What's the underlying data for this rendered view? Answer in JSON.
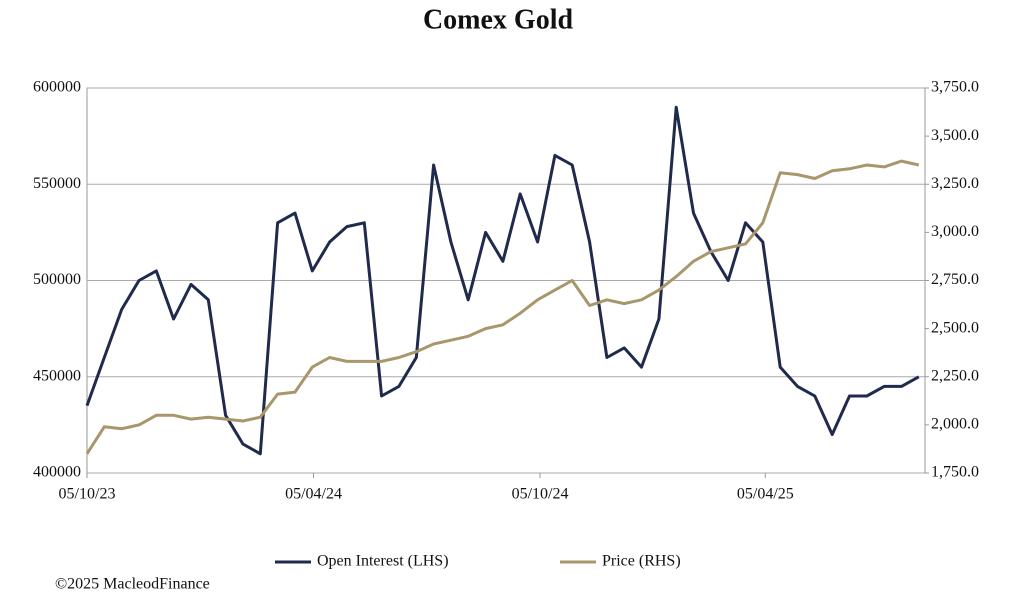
{
  "chart_data": {
    "type": "line",
    "title": "Comex Gold",
    "x": [
      "05/10/23",
      "19/10/23",
      "02/11/23",
      "16/11/23",
      "30/11/23",
      "14/12/23",
      "28/12/23",
      "11/01/24",
      "25/01/24",
      "08/02/24",
      "22/02/24",
      "07/03/24",
      "21/03/24",
      "04/04/24",
      "18/04/24",
      "02/05/24",
      "16/05/24",
      "30/05/24",
      "13/06/24",
      "27/06/24",
      "11/07/24",
      "25/07/24",
      "08/08/24",
      "22/08/24",
      "05/09/24",
      "19/09/24",
      "03/10/24",
      "17/10/24",
      "31/10/24",
      "14/11/24",
      "28/11/24",
      "12/12/24",
      "26/12/24",
      "09/01/25",
      "23/01/25",
      "06/02/25",
      "20/02/25",
      "06/03/25",
      "20/03/25",
      "03/04/25",
      "17/04/25",
      "01/05/25",
      "15/05/25",
      "29/05/25",
      "12/06/25",
      "26/06/25",
      "10/07/25",
      "24/07/25",
      "07/08/25"
    ],
    "xlim": [
      "05/10/23",
      "12/08/25"
    ],
    "xticks": [
      "05/10/23",
      "05/04/24",
      "05/10/24",
      "05/04/25"
    ],
    "ylim": [
      400000,
      600000
    ],
    "yticks": [
      400000,
      450000,
      500000,
      550000,
      600000
    ],
    "y2lim": [
      1750,
      3750
    ],
    "y2ticks": [
      {
        "value": 1750,
        "label": "1,750.0"
      },
      {
        "value": 2000,
        "label": "2,000.0"
      },
      {
        "value": 2250,
        "label": "2,250.0"
      },
      {
        "value": 2500,
        "label": "2,500.0"
      },
      {
        "value": 2750,
        "label": "2,750.0"
      },
      {
        "value": 3000,
        "label": "3,000.0"
      },
      {
        "value": 3250,
        "label": "3,250.0"
      },
      {
        "value": 3500,
        "label": "3,500.0"
      },
      {
        "value": 3750,
        "label": "3,750.0"
      }
    ],
    "grid": true,
    "series": [
      {
        "name": "Open Interest (LHS)",
        "color": "#1f2a4d",
        "values": [
          435000,
          460000,
          485000,
          500000,
          505000,
          480000,
          498000,
          490000,
          430000,
          415000,
          410000,
          530000,
          535000,
          505000,
          520000,
          528000,
          530000,
          440000,
          445000,
          460000,
          560000,
          520000,
          490000,
          525000,
          510000,
          545000,
          520000,
          565000,
          560000,
          520000,
          460000,
          465000,
          455000,
          480000,
          590000,
          535000,
          515000,
          500000,
          530000,
          520000,
          455000,
          445000,
          440000,
          420000,
          440000,
          440000,
          445000,
          445000,
          450000
        ]
      },
      {
        "name": "Price (RHS)",
        "color": "#a8976b",
        "axis": "y2",
        "values": [
          1850,
          1990,
          1980,
          2000,
          2050,
          2050,
          2030,
          2040,
          2030,
          2020,
          2040,
          2160,
          2170,
          2300,
          2350,
          2330,
          2330,
          2330,
          2350,
          2380,
          2420,
          2440,
          2460,
          2500,
          2520,
          2580,
          2650,
          2700,
          2750,
          2620,
          2650,
          2630,
          2650,
          2700,
          2770,
          2850,
          2900,
          2920,
          2940,
          3050,
          3310,
          3300,
          3280,
          3320,
          3330,
          3350,
          3340,
          3370,
          3350
        ]
      }
    ],
    "footer": "©2025 MacleodFinance"
  }
}
